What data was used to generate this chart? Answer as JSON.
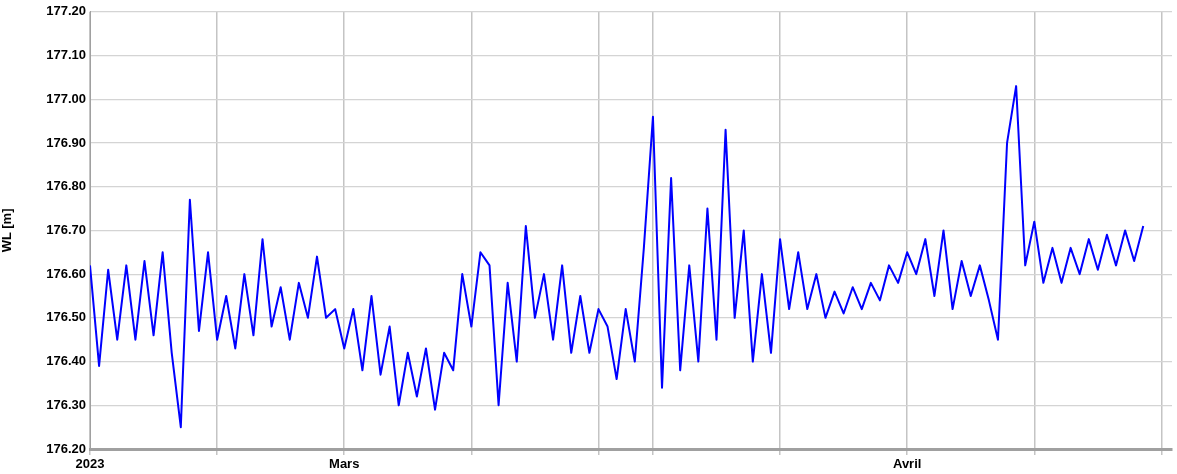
{
  "chart_data": {
    "type": "line",
    "ylabel": "WL [m]",
    "color": "#0000ff",
    "grid": true,
    "xlim": [
      "2023-02-15",
      "2023-04-15T14:00"
    ],
    "xticks": [
      {
        "value": "2023-02-15",
        "label": "2023"
      },
      {
        "value": "2023-02-22",
        "label": null
      },
      {
        "value": "2023-03-01",
        "label": "Mars"
      },
      {
        "value": "2023-03-08",
        "label": null
      },
      {
        "value": "2023-03-15",
        "label": null
      },
      {
        "value": "2023-03-18",
        "label": null
      },
      {
        "value": "2023-03-25",
        "label": null
      },
      {
        "value": "2023-04-01",
        "label": "Avril"
      },
      {
        "value": "2023-04-08",
        "label": null
      },
      {
        "value": "2023-04-15",
        "label": null
      }
    ],
    "ylim": [
      176.2,
      177.2
    ],
    "yticks": [
      {
        "value": 176.2,
        "label": "176.20"
      },
      {
        "value": 176.3,
        "label": "176.30"
      },
      {
        "value": 176.4,
        "label": "176.40"
      },
      {
        "value": 176.5,
        "label": "176.50"
      },
      {
        "value": 176.6,
        "label": "176.60"
      },
      {
        "value": 176.7,
        "label": "176.70"
      },
      {
        "value": 176.8,
        "label": "176.80"
      },
      {
        "value": 176.9,
        "label": "176.90"
      },
      {
        "value": 177.0,
        "label": "177.00"
      },
      {
        "value": 177.1,
        "label": "177.10"
      },
      {
        "value": 177.2,
        "label": "177.20"
      }
    ],
    "x": [
      "2023-02-15T00:00",
      "2023-02-15T12:00",
      "2023-02-16T00:00",
      "2023-02-16T12:00",
      "2023-02-17T00:00",
      "2023-02-17T12:00",
      "2023-02-18T00:00",
      "2023-02-18T12:00",
      "2023-02-19T00:00",
      "2023-02-19T12:00",
      "2023-02-20T00:00",
      "2023-02-20T12:00",
      "2023-02-21T00:00",
      "2023-02-21T12:00",
      "2023-02-22T00:00",
      "2023-02-22T12:00",
      "2023-02-23T00:00",
      "2023-02-23T12:00",
      "2023-02-24T00:00",
      "2023-02-24T12:00",
      "2023-02-25T00:00",
      "2023-02-25T12:00",
      "2023-02-26T00:00",
      "2023-02-26T12:00",
      "2023-02-27T00:00",
      "2023-02-27T12:00",
      "2023-02-28T00:00",
      "2023-02-28T12:00",
      "2023-03-01T00:00",
      "2023-03-01T12:00",
      "2023-03-02T00:00",
      "2023-03-02T12:00",
      "2023-03-03T00:00",
      "2023-03-03T12:00",
      "2023-03-04T00:00",
      "2023-03-04T12:00",
      "2023-03-05T00:00",
      "2023-03-05T12:00",
      "2023-03-06T00:00",
      "2023-03-06T12:00",
      "2023-03-07T00:00",
      "2023-03-07T12:00",
      "2023-03-08T00:00",
      "2023-03-08T12:00",
      "2023-03-09T00:00",
      "2023-03-09T12:00",
      "2023-03-10T00:00",
      "2023-03-10T12:00",
      "2023-03-11T00:00",
      "2023-03-11T12:00",
      "2023-03-12T00:00",
      "2023-03-12T12:00",
      "2023-03-13T00:00",
      "2023-03-13T12:00",
      "2023-03-14T00:00",
      "2023-03-14T12:00",
      "2023-03-15T00:00",
      "2023-03-15T12:00",
      "2023-03-16T00:00",
      "2023-03-16T12:00",
      "2023-03-17T00:00",
      "2023-03-17T12:00",
      "2023-03-18T00:00",
      "2023-03-18T12:00",
      "2023-03-19T00:00",
      "2023-03-19T12:00",
      "2023-03-20T00:00",
      "2023-03-20T12:00",
      "2023-03-21T00:00",
      "2023-03-21T12:00",
      "2023-03-22T00:00",
      "2023-03-22T12:00",
      "2023-03-23T00:00",
      "2023-03-23T12:00",
      "2023-03-24T00:00",
      "2023-03-24T12:00",
      "2023-03-25T00:00",
      "2023-03-25T12:00",
      "2023-03-26T00:00",
      "2023-03-26T12:00",
      "2023-03-27T00:00",
      "2023-03-27T12:00",
      "2023-03-28T00:00",
      "2023-03-28T12:00",
      "2023-03-29T00:00",
      "2023-03-29T12:00",
      "2023-03-30T00:00",
      "2023-03-30T12:00",
      "2023-03-31T00:00",
      "2023-03-31T12:00",
      "2023-04-01T00:00",
      "2023-04-01T12:00",
      "2023-04-02T00:00",
      "2023-04-02T12:00",
      "2023-04-03T00:00",
      "2023-04-03T12:00",
      "2023-04-04T00:00",
      "2023-04-04T12:00",
      "2023-04-05T00:00",
      "2023-04-05T12:00",
      "2023-04-06T00:00",
      "2023-04-06T12:00",
      "2023-04-07T00:00",
      "2023-04-07T12:00",
      "2023-04-08T00:00",
      "2023-04-08T12:00",
      "2023-04-09T00:00",
      "2023-04-09T12:00",
      "2023-04-10T00:00",
      "2023-04-10T12:00",
      "2023-04-11T00:00",
      "2023-04-11T12:00",
      "2023-04-12T00:00",
      "2023-04-12T12:00",
      "2023-04-13T00:00",
      "2023-04-13T12:00",
      "2023-04-14T00:00"
    ],
    "values": [
      176.62,
      176.39,
      176.61,
      176.45,
      176.62,
      176.45,
      176.63,
      176.46,
      176.65,
      176.42,
      176.25,
      176.77,
      176.47,
      176.65,
      176.45,
      176.55,
      176.43,
      176.6,
      176.46,
      176.68,
      176.48,
      176.57,
      176.45,
      176.58,
      176.5,
      176.64,
      176.5,
      176.52,
      176.43,
      176.52,
      176.38,
      176.55,
      176.37,
      176.48,
      176.3,
      176.42,
      176.32,
      176.43,
      176.29,
      176.42,
      176.38,
      176.6,
      176.48,
      176.65,
      176.62,
      176.3,
      176.58,
      176.4,
      176.71,
      176.5,
      176.6,
      176.45,
      176.62,
      176.42,
      176.55,
      176.42,
      176.52,
      176.48,
      176.36,
      176.52,
      176.4,
      176.66,
      176.96,
      176.34,
      176.82,
      176.38,
      176.62,
      176.4,
      176.75,
      176.45,
      176.93,
      176.5,
      176.7,
      176.4,
      176.6,
      176.42,
      176.68,
      176.52,
      176.65,
      176.52,
      176.6,
      176.5,
      176.56,
      176.51,
      176.57,
      176.52,
      176.58,
      176.54,
      176.62,
      176.58,
      176.65,
      176.6,
      176.68,
      176.55,
      176.7,
      176.52,
      176.63,
      176.55,
      176.62,
      176.54,
      176.45,
      176.9,
      177.03,
      176.62,
      176.72,
      176.58,
      176.66,
      176.58,
      176.66,
      176.6,
      176.68,
      176.61,
      176.69,
      176.62,
      176.7,
      176.63,
      176.71
    ]
  }
}
